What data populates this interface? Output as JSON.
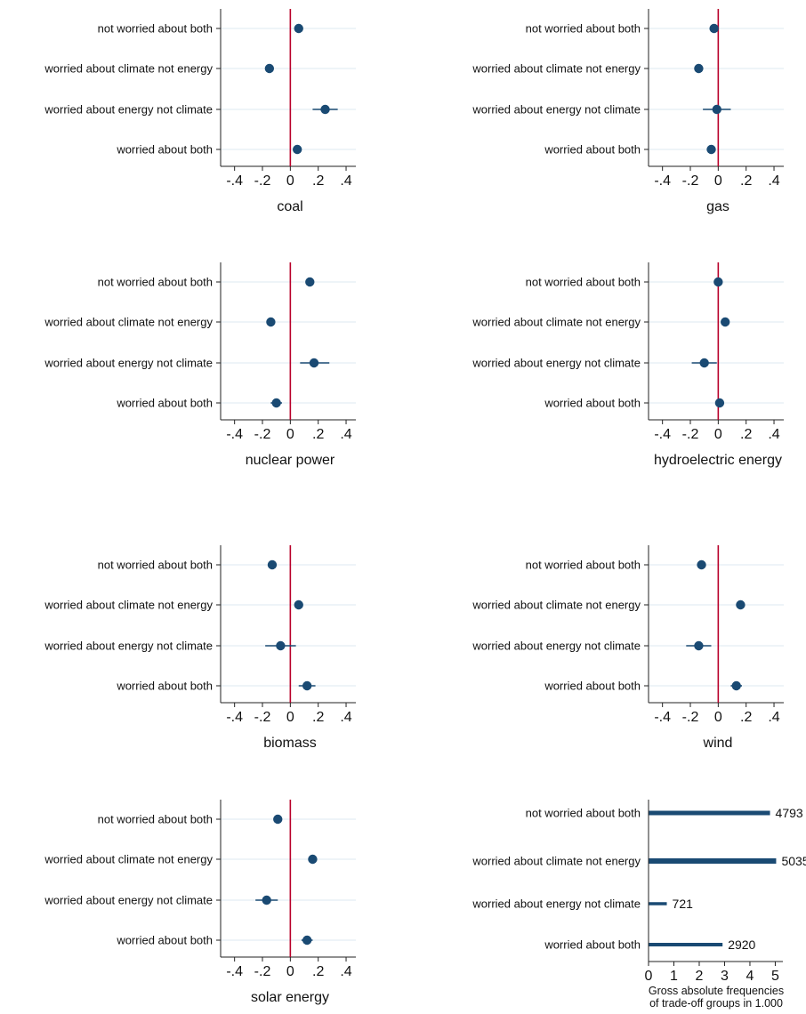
{
  "colors": {
    "point": "#1a4a73",
    "ci": "#1a4a73",
    "zero_line": "#b8002a",
    "gridline": "#e3eef3",
    "axis": "#222222",
    "bar": "#1a4a73"
  },
  "chart_data": [
    {
      "type": "scatter",
      "title": "coal",
      "xlabel": "coal",
      "categories": [
        "not worried about both",
        "worried about climate not energy",
        "worried about energy not climate",
        "worried about both"
      ],
      "xticks": [
        "-.4",
        "-.2",
        "0",
        ".2",
        ".4"
      ],
      "xlim": [
        -0.5,
        0.47
      ],
      "reference_line_x": 0,
      "estimates": [
        0.06,
        -0.15,
        0.25,
        0.05
      ],
      "ci": [
        [
          0.04,
          0.08
        ],
        [
          -0.17,
          -0.13
        ],
        [
          0.16,
          0.34
        ],
        [
          0.03,
          0.07
        ]
      ]
    },
    {
      "type": "scatter",
      "title": "gas",
      "xlabel": "gas",
      "categories": [
        "not worried about both",
        "worried about climate not energy",
        "worried about energy not climate",
        "worried about both"
      ],
      "xticks": [
        "-.4",
        "-.2",
        "0",
        ".2",
        ".4"
      ],
      "xlim": [
        -0.5,
        0.47
      ],
      "reference_line_x": 0,
      "estimates": [
        -0.03,
        -0.14,
        -0.01,
        -0.05
      ],
      "ci": [
        [
          -0.05,
          -0.01
        ],
        [
          -0.16,
          -0.12
        ],
        [
          -0.11,
          0.09
        ],
        [
          -0.08,
          -0.02
        ]
      ]
    },
    {
      "type": "scatter",
      "title": "nuclear power",
      "xlabel": "nuclear power",
      "categories": [
        "not worried about both",
        "worried about climate not energy",
        "worried about energy not climate",
        "worried about both"
      ],
      "xticks": [
        "-.4",
        "-.2",
        "0",
        ".2",
        ".4"
      ],
      "xlim": [
        -0.5,
        0.47
      ],
      "reference_line_x": 0,
      "estimates": [
        0.14,
        -0.14,
        0.17,
        -0.1
      ],
      "ci": [
        [
          0.12,
          0.16
        ],
        [
          -0.16,
          -0.12
        ],
        [
          0.07,
          0.28
        ],
        [
          -0.14,
          -0.06
        ]
      ]
    },
    {
      "type": "scatter",
      "title": "hydroelectric energy",
      "xlabel": "hydroelectric energy",
      "categories": [
        "not worried about both",
        "worried about climate not energy",
        "worried about energy not climate",
        "worried about both"
      ],
      "xticks": [
        "-.4",
        "-.2",
        "0",
        ".2",
        ".4"
      ],
      "xlim": [
        -0.5,
        0.47
      ],
      "reference_line_x": 0,
      "estimates": [
        0.0,
        0.05,
        -0.1,
        0.01
      ],
      "ci": [
        [
          -0.02,
          0.02
        ],
        [
          0.03,
          0.07
        ],
        [
          -0.19,
          -0.01
        ],
        [
          -0.02,
          0.04
        ]
      ]
    },
    {
      "type": "scatter",
      "title": "biomass",
      "xlabel": "biomass",
      "categories": [
        "not worried about both",
        "worried about climate not energy",
        "worried about energy not climate",
        "worried about both"
      ],
      "xticks": [
        "-.4",
        "-.2",
        "0",
        ".2",
        ".4"
      ],
      "xlim": [
        -0.5,
        0.47
      ],
      "reference_line_x": 0,
      "estimates": [
        -0.13,
        0.06,
        -0.07,
        0.12
      ],
      "ci": [
        [
          -0.16,
          -0.1
        ],
        [
          0.04,
          0.08
        ],
        [
          -0.18,
          0.04
        ],
        [
          0.06,
          0.18
        ]
      ]
    },
    {
      "type": "scatter",
      "title": "wind",
      "xlabel": "wind",
      "categories": [
        "not worried about both",
        "worried about climate not energy",
        "worried about energy not climate",
        "worried about both"
      ],
      "xticks": [
        "-.4",
        "-.2",
        "0",
        ".2",
        ".4"
      ],
      "xlim": [
        -0.5,
        0.47
      ],
      "reference_line_x": 0,
      "estimates": [
        -0.12,
        0.16,
        -0.14,
        0.13
      ],
      "ci": [
        [
          -0.15,
          -0.09
        ],
        [
          0.14,
          0.18
        ],
        [
          -0.23,
          -0.05
        ],
        [
          0.09,
          0.17
        ]
      ]
    },
    {
      "type": "scatter",
      "title": "solar energy",
      "xlabel": "solar energy",
      "categories": [
        "not worried about both",
        "worried about climate not energy",
        "worried about energy not climate",
        "worried about both"
      ],
      "xticks": [
        "-.4",
        "-.2",
        "0",
        ".2",
        ".4"
      ],
      "xlim": [
        -0.5,
        0.47
      ],
      "reference_line_x": 0,
      "estimates": [
        -0.09,
        0.16,
        -0.17,
        0.12
      ],
      "ci": [
        [
          -0.11,
          -0.07
        ],
        [
          0.14,
          0.18
        ],
        [
          -0.25,
          -0.09
        ],
        [
          0.08,
          0.16
        ]
      ]
    },
    {
      "type": "bar",
      "orientation": "horizontal",
      "xlabel": "Gross absolute frequencies of trade-off groups in 1.000",
      "xlabel_lines": [
        "Gross absolute frequencies",
        "of trade-off groups in 1.000"
      ],
      "categories": [
        "not worried about both",
        "worried about climate not energy",
        "worried about energy not climate",
        "worried about both"
      ],
      "values": [
        4.793,
        5.035,
        0.721,
        2.92
      ],
      "data_labels": [
        "4793",
        "5035",
        "721",
        "2920"
      ],
      "xticks": [
        "0",
        "1",
        "2",
        "3",
        "4",
        "5"
      ],
      "xlim": [
        0,
        5.3
      ]
    }
  ]
}
